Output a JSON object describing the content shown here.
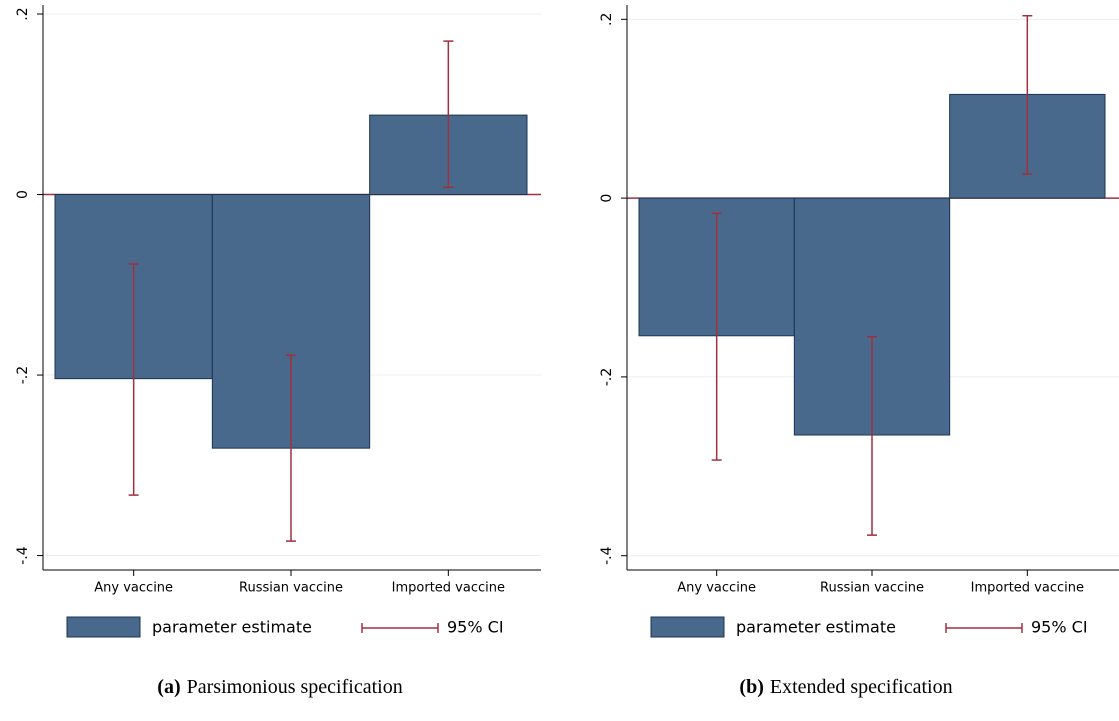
{
  "chart_data": [
    {
      "type": "bar",
      "caption_label": "(a)",
      "caption": "Parsimonious specification",
      "categories": [
        "Any vaccine",
        "Russian vaccine",
        "Imported vaccine"
      ],
      "series": [
        {
          "name": "parameter estimate",
          "color": "#48698c",
          "values": [
            -0.204,
            -0.281,
            0.088
          ]
        },
        {
          "name": "95% CI",
          "color": "#a03040",
          "lower": [
            -0.333,
            -0.384,
            0.008
          ],
          "upper": [
            -0.077,
            -0.178,
            0.17
          ]
        }
      ],
      "ylim": [
        -0.416,
        0.21
      ],
      "yticks": [
        {
          "value": -0.4,
          "label": "-.4"
        },
        {
          "value": -0.2,
          "label": "-.2"
        },
        0,
        {
          "value": 0.2,
          "label": ".2"
        }
      ],
      "grid": true
    },
    {
      "type": "bar",
      "caption_label": "(b)",
      "caption": "Extended specification",
      "categories": [
        "Any vaccine",
        "Russian vaccine",
        "Imported vaccine"
      ],
      "series": [
        {
          "name": "parameter estimate",
          "color": "#48698c",
          "values": [
            -0.154,
            -0.265,
            0.116
          ]
        },
        {
          "name": "95% CI",
          "color": "#a03040",
          "lower": [
            -0.293,
            -0.377,
            0.027
          ],
          "upper": [
            -0.017,
            -0.155,
            0.204
          ]
        }
      ],
      "ylim": [
        -0.416,
        0.216
      ],
      "yticks": [
        {
          "value": -0.4,
          "label": "-.4"
        },
        {
          "value": -0.2,
          "label": "-.2"
        },
        0,
        {
          "value": 0.2,
          "label": ".2"
        }
      ],
      "grid": true
    }
  ]
}
